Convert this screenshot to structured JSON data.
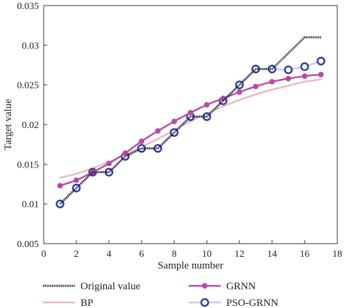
{
  "chart_data": {
    "type": "line",
    "xlabel": "Sample number",
    "ylabel": "Target value",
    "xlim": [
      0,
      18
    ],
    "ylim": [
      0.005,
      0.035
    ],
    "x_ticks": [
      0,
      2,
      4,
      6,
      8,
      10,
      12,
      14,
      16,
      18
    ],
    "y_ticks": [
      0.005,
      0.01,
      0.015,
      0.02,
      0.025,
      0.03,
      0.035
    ],
    "x_tick_labels": [
      "0",
      "2",
      "4",
      "6",
      "8",
      "10",
      "12",
      "14",
      "16",
      "18"
    ],
    "y_tick_labels": [
      "0.005",
      "0.01",
      "0.015",
      "0.02",
      "0.025",
      "0.03",
      "0.035"
    ],
    "grid": false,
    "legend_placement": "bottom",
    "x": [
      1,
      2,
      3,
      4,
      5,
      6,
      7,
      8,
      9,
      10,
      11,
      12,
      13,
      14,
      15,
      16,
      17
    ],
    "series": [
      {
        "name": "Original value",
        "style": "dotted",
        "color": "#1a1a2a",
        "x": [
          1,
          2,
          3,
          4,
          5,
          6,
          7,
          8,
          9,
          10,
          11,
          12,
          13,
          14,
          15,
          16,
          17
        ],
        "values": [
          0.01,
          0.012,
          0.014,
          0.014,
          0.016,
          0.017,
          0.017,
          0.019,
          0.021,
          0.021,
          0.023,
          0.025,
          0.027,
          0.027,
          0.029,
          0.031,
          0.031
        ]
      },
      {
        "name": "GRNN",
        "style": "line-filled-marker",
        "color": "#b84aa6",
        "x": [
          1,
          2,
          3,
          4,
          5,
          6,
          7,
          8,
          9,
          10,
          11,
          12,
          13,
          14,
          15,
          16,
          17
        ],
        "values": [
          0.0123,
          0.013,
          0.014,
          0.0151,
          0.0164,
          0.0179,
          0.0192,
          0.0204,
          0.0215,
          0.0225,
          0.0233,
          0.0241,
          0.0248,
          0.0254,
          0.0258,
          0.0261,
          0.0263
        ]
      },
      {
        "name": "BP",
        "style": "line",
        "color": "#eab7c2",
        "x": [
          1,
          2,
          3,
          4,
          5,
          6,
          7,
          8,
          9,
          10,
          11,
          12,
          13,
          14,
          15,
          16,
          17
        ],
        "values": [
          0.0133,
          0.0138,
          0.0145,
          0.0153,
          0.0162,
          0.0172,
          0.0182,
          0.0193,
          0.0204,
          0.0214,
          0.0223,
          0.0231,
          0.0238,
          0.0244,
          0.0249,
          0.0254,
          0.0257
        ]
      },
      {
        "name": "PSO-GRNN",
        "style": "line-hollow-marker",
        "color": "#2e3f9c",
        "line_color": "#c9cbe6",
        "x": [
          1,
          2,
          3,
          4,
          5,
          6,
          7,
          8,
          9,
          10,
          11,
          12,
          13,
          14,
          15,
          16,
          17
        ],
        "values": [
          0.01,
          0.012,
          0.014,
          0.014,
          0.016,
          0.017,
          0.017,
          0.019,
          0.021,
          0.021,
          0.023,
          0.025,
          0.027,
          0.027,
          0.0269,
          0.0273,
          0.028
        ]
      }
    ]
  }
}
